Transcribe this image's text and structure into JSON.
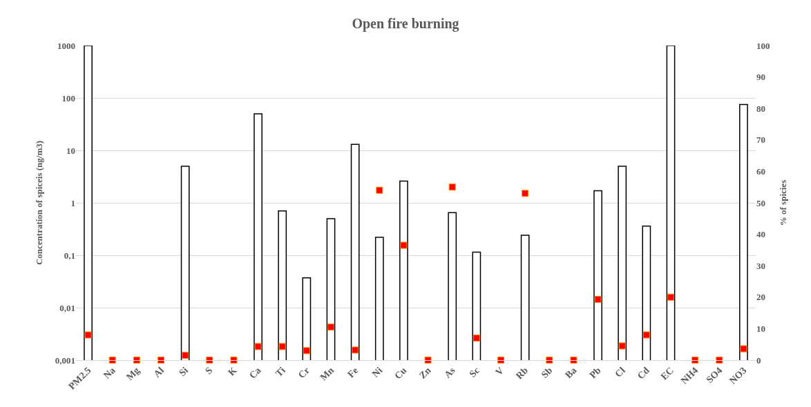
{
  "chart_data": {
    "type": "bar",
    "title": "Open fire burning",
    "ylabel": "Concentration of spiceis (ng/m3)",
    "y2label": "% of spicies",
    "categories": [
      "PM2.5",
      "Na",
      "Mg",
      "Al",
      "Si",
      "S",
      "K",
      "Ca",
      "Ti",
      "Cr",
      "Mn",
      "Fe",
      "Ni",
      "Cu",
      "Zn",
      "As",
      "Sc",
      "V",
      "Rb",
      "Sb",
      "Ba",
      "Pb",
      "Cl",
      "Cd",
      "EC",
      "NH4",
      "SO4",
      "NO3"
    ],
    "series": [
      {
        "color": "#ffffff",
        "values": [
          1000,
          null,
          null,
          null,
          5,
          null,
          null,
          50,
          0.7,
          0.037,
          0.5,
          13,
          0.22,
          2.6,
          null,
          0.65,
          0.115,
          null,
          0.24,
          null,
          null,
          1.7,
          5,
          0.36,
          1000,
          null,
          null,
          75
        ]
      },
      {
        "type": "scatter",
        "axis": "y2",
        "color": "#ff0000",
        "marker": "square",
        "values": [
          8,
          0,
          0,
          0,
          1.5,
          0,
          0,
          4.3,
          4.3,
          3,
          10.5,
          3.2,
          54,
          36.5,
          0,
          55,
          7,
          0,
          53,
          0,
          0,
          19.3,
          4.5,
          8,
          20,
          0,
          0,
          3.6
        ]
      }
    ],
    "log": "y",
    "ylim": [
      0.001,
      1000
    ],
    "yticks": [
      {
        "value": 0.001,
        "label": "0,001"
      },
      {
        "value": 0.01,
        "label": "0,01"
      },
      {
        "value": 0.1,
        "label": "0,1"
      },
      1,
      10,
      100,
      1000
    ],
    "y2lim": [
      0,
      100
    ],
    "y2ticks": [
      0,
      10,
      20,
      30,
      40,
      50,
      60,
      70,
      80,
      90,
      100
    ],
    "grid": "y",
    "legend": false
  }
}
